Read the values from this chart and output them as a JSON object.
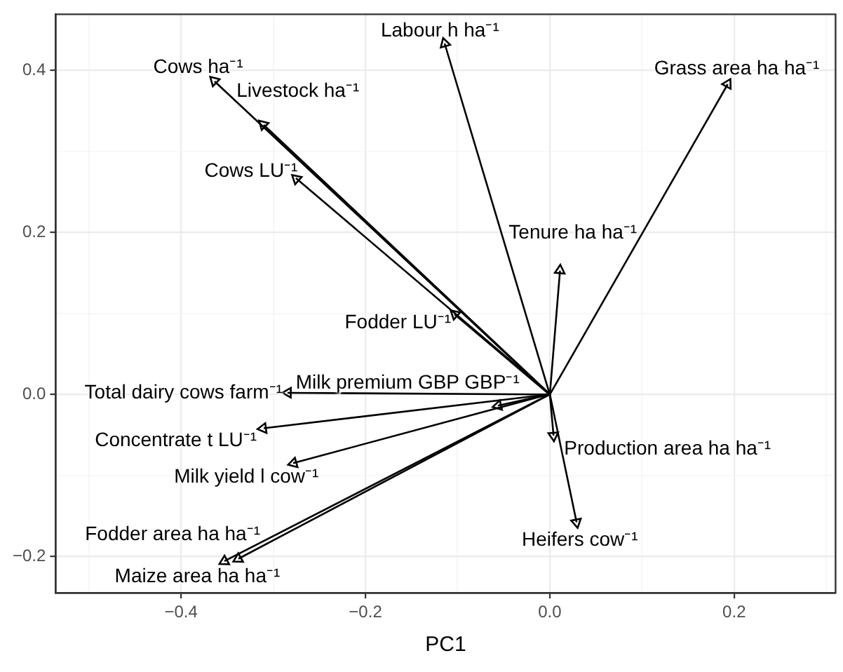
{
  "chart_data": {
    "type": "scatter",
    "xlabel": "PC1",
    "grid": true,
    "marker": "triangle",
    "legend": false,
    "color": "#000000",
    "xlim": [
      -0.536,
      0.31
    ],
    "ylim": [
      -0.245,
      0.469
    ],
    "xticks": [
      {
        "value": -0.5,
        "label": null
      },
      {
        "value": -0.4,
        "label": "−0.4"
      },
      {
        "value": -0.3,
        "label": null
      },
      {
        "value": -0.2,
        "label": "−0.2"
      },
      {
        "value": -0.1,
        "label": null
      },
      {
        "value": 0,
        "label": "0.0"
      },
      {
        "value": 0.1,
        "label": null
      },
      {
        "value": 0.2,
        "label": "0.2"
      },
      {
        "value": 0.3,
        "label": null
      }
    ],
    "yticks": [
      {
        "value": -0.2,
        "label": "−0.2"
      },
      {
        "value": -0.1,
        "label": null
      },
      {
        "value": 0,
        "label": "0.0"
      },
      {
        "value": 0.1,
        "label": null
      },
      {
        "value": 0.2,
        "label": "0.2"
      },
      {
        "value": 0.3,
        "label": null
      },
      {
        "value": 0.4,
        "label": "0.4"
      }
    ],
    "x": [
      -0.114,
      0.193,
      0.011,
      -0.103,
      -0.364,
      -0.311,
      -0.275,
      -0.284,
      -0.311,
      -0.278,
      -0.353,
      -0.338,
      -0.056,
      0.004,
      0.029
    ],
    "values": [
      0.433,
      0.383,
      0.153,
      0.099,
      0.387,
      0.333,
      0.266,
      0.002,
      -0.042,
      -0.085,
      -0.206,
      -0.203,
      -0.014,
      -0.051,
      -0.158
    ],
    "annotations": [
      {
        "text": "Labour h ha⁻¹",
        "x": -0.114,
        "y": 0.433
      },
      {
        "text": "Grass area ha ha⁻¹",
        "x": 0.193,
        "y": 0.383
      },
      {
        "text": "Tenure ha ha⁻¹",
        "x": 0.011,
        "y": 0.153
      },
      {
        "text": "Fodder LU⁻¹",
        "x": -0.103,
        "y": 0.099
      },
      {
        "text": "Cows ha⁻¹",
        "x": -0.364,
        "y": 0.387
      },
      {
        "text": "Livestock ha⁻¹",
        "x": -0.311,
        "y": 0.333
      },
      {
        "text": "Cows LU⁻¹",
        "x": -0.275,
        "y": 0.266
      },
      {
        "text": "Total dairy cows farm⁻¹",
        "x": -0.284,
        "y": 0.002
      },
      {
        "text": "Concentrate t LU⁻¹",
        "x": -0.311,
        "y": -0.042
      },
      {
        "text": "Milk yield l cow⁻¹",
        "x": -0.278,
        "y": -0.085
      },
      {
        "text": "Maize area ha ha⁻¹",
        "x": -0.353,
        "y": -0.206
      },
      {
        "text": "Fodder area ha ha⁻¹",
        "x": -0.338,
        "y": -0.203
      },
      {
        "text": "Milk premium GBP GBP⁻¹",
        "x": -0.056,
        "y": -0.014
      },
      {
        "text": "Production area ha ha⁻¹",
        "x": 0.004,
        "y": -0.051
      },
      {
        "text": "Heifers cow⁻¹",
        "x": 0.029,
        "y": -0.158
      }
    ]
  }
}
